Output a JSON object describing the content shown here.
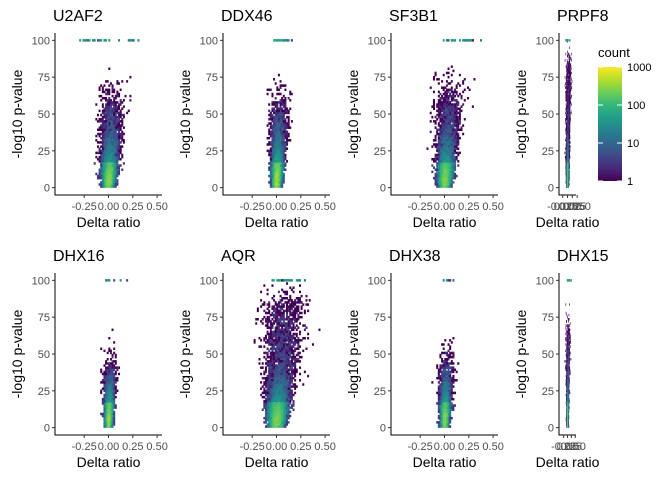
{
  "chart_data": {
    "type": "heatmap",
    "subtype": "binned 2D volcano plots",
    "panels": [
      {
        "title": "U2AF2",
        "xlabel": "Delta ratio",
        "ylabel": "-log10 p-value",
        "xlim": [
          -0.5,
          0.5
        ],
        "ylim": [
          0,
          100
        ],
        "x_ticks": [
          -0.25,
          0.0,
          0.25,
          0.5
        ],
        "x_tick_labels": [
          "-0.25",
          "0.00",
          "0.25",
          "0.50"
        ],
        "y_ticks": [
          0,
          25,
          50,
          75,
          100
        ],
        "y_tick_labels": [
          "0",
          "25",
          "50",
          "75",
          "100"
        ],
        "spread": 0.13,
        "cap_density": 1.0,
        "cap_range": [
          -0.3,
          0.35
        ],
        "upper_density": 0.55,
        "core": "tight"
      },
      {
        "title": "DDX46",
        "xlabel": "Delta ratio",
        "ylabel": "-log10 p-value",
        "xlim": [
          -0.5,
          0.5
        ],
        "ylim": [
          0,
          100
        ],
        "x_ticks": [
          -0.25,
          0.0,
          0.25,
          0.5
        ],
        "x_tick_labels": [
          "-0.25",
          "0.00",
          "0.25",
          "0.50"
        ],
        "y_ticks": [
          0,
          25,
          50,
          75,
          100
        ],
        "y_tick_labels": [
          "0",
          "25",
          "50",
          "75",
          "100"
        ],
        "spread": 0.1,
        "cap_density": 0.9,
        "cap_range": [
          -0.03,
          0.2
        ],
        "upper_density": 0.5,
        "core": "tight"
      },
      {
        "title": "SF3B1",
        "xlabel": "Delta ratio",
        "ylabel": "-log10 p-value",
        "xlim": [
          -0.5,
          0.5
        ],
        "ylim": [
          0,
          100
        ],
        "x_ticks": [
          -0.25,
          0.0,
          0.25,
          0.5
        ],
        "x_tick_labels": [
          "-0.25",
          "0.00",
          "0.25",
          "0.50"
        ],
        "y_ticks": [
          0,
          25,
          50,
          75,
          100
        ],
        "y_tick_labels": [
          "0",
          "25",
          "50",
          "75",
          "100"
        ],
        "spread": 0.14,
        "cap_density": 0.9,
        "cap_range": [
          -0.02,
          0.45
        ],
        "upper_density": 0.6,
        "core": "tight"
      },
      {
        "title": "PRPF8",
        "xlabel": "Delta ratio",
        "ylabel": "-log10 p-value",
        "xlim": [
          -0.04,
          0.04
        ],
        "ylim": [
          0,
          100
        ],
        "x_ticks": [
          -0.025,
          0.0,
          0.025,
          0.05
        ],
        "x_tick_labels": [
          "-0.025",
          "0.000",
          "0.025",
          "0.050"
        ],
        "y_ticks": [
          0,
          25,
          50,
          75,
          100
        ],
        "y_tick_labels": [
          "0",
          "25",
          "50",
          "75",
          "100"
        ],
        "spread": 0.012,
        "cap_density": 1.0,
        "cap_range": [
          -0.01,
          0.02
        ],
        "upper_density": 0.8,
        "core": "tight"
      },
      {
        "title": "DHX16",
        "xlabel": "Delta ratio",
        "ylabel": "-log10 p-value",
        "xlim": [
          -0.5,
          0.5
        ],
        "ylim": [
          0,
          100
        ],
        "x_ticks": [
          -0.25,
          0.0,
          0.25,
          0.5
        ],
        "x_tick_labels": [
          "-0.25",
          "0.00",
          "0.25",
          "0.50"
        ],
        "y_ticks": [
          0,
          25,
          50,
          75,
          100
        ],
        "y_tick_labels": [
          "0",
          "25",
          "50",
          "75",
          "100"
        ],
        "spread": 0.08,
        "cap_density": 0.25,
        "cap_range": [
          -0.02,
          0.25
        ],
        "upper_density": 0.3,
        "core": "narrow"
      },
      {
        "title": "AQR",
        "xlabel": "Delta ratio",
        "ylabel": "-log10 p-value",
        "xlim": [
          -0.5,
          0.5
        ],
        "ylim": [
          0,
          100
        ],
        "x_ticks": [
          -0.25,
          0.0,
          0.25,
          0.5
        ],
        "x_tick_labels": [
          "-0.25",
          "0.00",
          "0.25",
          "0.50"
        ],
        "y_ticks": [
          0,
          25,
          50,
          75,
          100
        ],
        "y_tick_labels": [
          "0",
          "25",
          "50",
          "75",
          "100"
        ],
        "spread": 0.18,
        "cap_density": 1.0,
        "cap_range": [
          -0.05,
          0.4
        ],
        "upper_density": 0.85,
        "core": "wide"
      },
      {
        "title": "DHX38",
        "xlabel": "Delta ratio",
        "ylabel": "-log10 p-value",
        "xlim": [
          -0.5,
          0.5
        ],
        "ylim": [
          0,
          100
        ],
        "x_ticks": [
          -0.25,
          0.0,
          0.25,
          0.5
        ],
        "x_tick_labels": [
          "-0.25",
          "0.00",
          "0.25",
          "0.50"
        ],
        "y_ticks": [
          0,
          25,
          50,
          75,
          100
        ],
        "y_tick_labels": [
          "0",
          "25",
          "50",
          "75",
          "100"
        ],
        "spread": 0.09,
        "cap_density": 0.2,
        "cap_range": [
          -0.02,
          0.2
        ],
        "upper_density": 0.35,
        "core": "narrow"
      },
      {
        "title": "DHX15",
        "xlabel": "Delta ratio",
        "ylabel": "-log10 p-value",
        "xlim": [
          -0.5,
          0.5
        ],
        "ylim": [
          0,
          100
        ],
        "x_ticks": [
          -0.25,
          0.0,
          0.25,
          0.5
        ],
        "x_tick_labels": [
          "-0.25",
          "0.00",
          "0.25",
          "0.50"
        ],
        "y_ticks": [
          0,
          25,
          50,
          75,
          100
        ],
        "y_tick_labels": [
          "0",
          "25",
          "50",
          "75",
          "100"
        ],
        "spread": 0.12,
        "cap_density": 0.9,
        "cap_range": [
          -0.02,
          0.35
        ],
        "upper_density": 0.6,
        "core": "tight"
      }
    ],
    "legend": {
      "title": "count",
      "scale": "log10",
      "range": [
        1,
        1000
      ],
      "tick_values": [
        1,
        10,
        100,
        1000
      ],
      "tick_labels": [
        "1",
        "10",
        "100",
        "1000"
      ],
      "colormap": "viridis",
      "colors": [
        "#440154",
        "#482878",
        "#3e4989",
        "#31688e",
        "#26828e",
        "#1f9e89",
        "#35b779",
        "#6ece58",
        "#b5de2b",
        "#fde725"
      ],
      "placement": "right"
    },
    "grid": false
  }
}
